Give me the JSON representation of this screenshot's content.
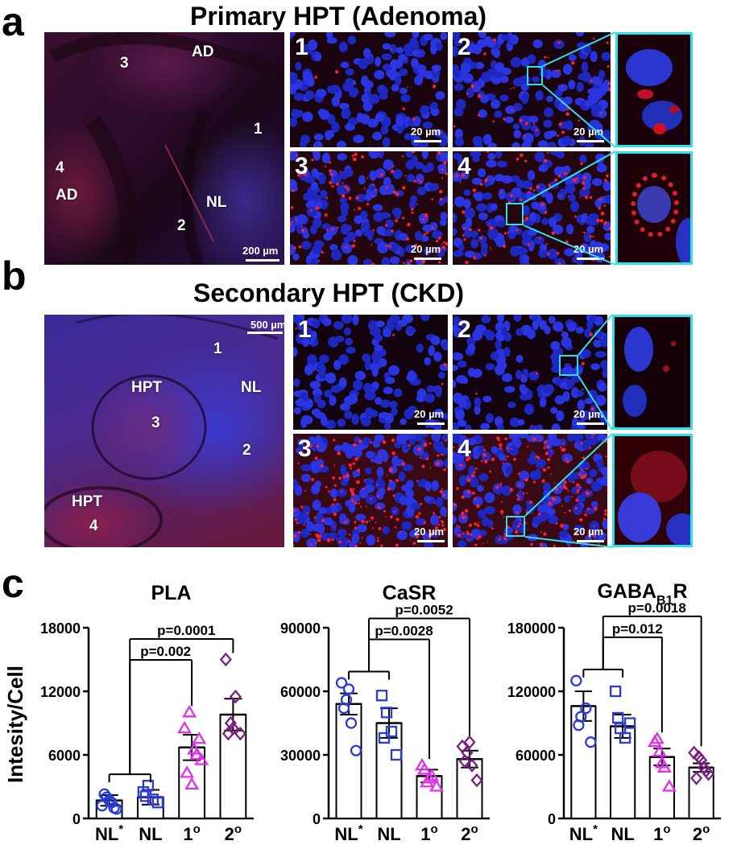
{
  "panel_a": {
    "letter": "a",
    "title": "Primary HPT (Adenoma)",
    "overview": {
      "regions": [
        "3",
        "AD",
        "1",
        "4",
        "AD",
        "NL",
        "2"
      ],
      "scale_bar": "200 µm"
    },
    "tiles": [
      {
        "number": "1",
        "scale_bar": "20 µm"
      },
      {
        "number": "2",
        "scale_bar": "20 µm"
      },
      {
        "number": "3",
        "scale_bar": "20 µm"
      },
      {
        "number": "4",
        "scale_bar": "20 µm"
      }
    ]
  },
  "panel_b": {
    "letter": "b",
    "title": "Secondary HPT (CKD)",
    "overview": {
      "regions": [
        "1",
        "HPT",
        "NL",
        "3",
        "2",
        "HPT",
        "4"
      ],
      "scale_bar": "500 µm"
    },
    "tiles": [
      {
        "number": "1",
        "scale_bar": "20 µm"
      },
      {
        "number": "2",
        "scale_bar": "20 µm"
      },
      {
        "number": "3",
        "scale_bar": "20 µm"
      },
      {
        "number": "4",
        "scale_bar": "20 µm"
      }
    ]
  },
  "panel_c": {
    "letter": "c",
    "ylabel": "Intesity/Cell",
    "colors": {
      "NL*": "#2b3bd6",
      "NL": "#2b3bd6",
      "1o": "#e030e8",
      "2o": "#7a1e80"
    }
  },
  "chart_data": [
    {
      "type": "bar",
      "title": "PLA",
      "categories": [
        "NL*",
        "NL",
        "1o",
        "2o"
      ],
      "category_labels": [
        {
          "base": "NL",
          "sup": "*"
        },
        {
          "base": "NL",
          "sup": ""
        },
        {
          "base": "1",
          "sup": "o"
        },
        {
          "base": "2",
          "sup": "o"
        }
      ],
      "values": [
        1700,
        2000,
        6700,
        9800
      ],
      "sem": [
        500,
        700,
        1200,
        1500
      ],
      "points": [
        [
          1200,
          2000,
          1500,
          900,
          2300,
          1700,
          1000
        ],
        [
          2500,
          3100,
          1800,
          1500,
          2100
        ],
        [
          8500,
          10000,
          6500,
          7500,
          4300,
          3200,
          6000,
          5500
        ],
        [
          15000,
          9000,
          11500,
          8000,
          8000,
          8500
        ]
      ],
      "ylim": [
        0,
        18000
      ],
      "yticks": [
        0,
        6000,
        12000,
        18000
      ],
      "comparisons": [
        {
          "label": "p=0.002",
          "to": "1o"
        },
        {
          "label": "p=0.0001",
          "to": "2o"
        }
      ]
    },
    {
      "type": "bar",
      "title": "CaSR",
      "categories": [
        "NL*",
        "NL",
        "1o",
        "2o"
      ],
      "category_labels": [
        {
          "base": "NL",
          "sup": "*"
        },
        {
          "base": "NL",
          "sup": ""
        },
        {
          "base": "1",
          "sup": "o"
        },
        {
          "base": "2",
          "sup": "o"
        }
      ],
      "values": [
        54000,
        45000,
        20000,
        28000
      ],
      "sem": [
        5000,
        7000,
        3000,
        4000
      ],
      "points": [
        [
          64000,
          56000,
          45000,
          32000,
          52000,
          61000
        ],
        [
          58000,
          50000,
          41000,
          30000,
          38000
        ],
        [
          25000,
          17000,
          20000,
          15000,
          23000,
          19000
        ],
        [
          34000,
          31000,
          25000,
          18000,
          27000,
          36000
        ]
      ],
      "ylim": [
        0,
        90000
      ],
      "yticks": [
        0,
        30000,
        60000,
        90000
      ],
      "comparisons": [
        {
          "label": "p=0.0028",
          "to": "1o"
        },
        {
          "label": "p=0.0052",
          "to": "2o"
        }
      ]
    },
    {
      "type": "bar",
      "title": "GABAB1R",
      "title_parts": {
        "base": "GABA",
        "sub": "B1",
        "tail": "R"
      },
      "categories": [
        "NL*",
        "NL",
        "1o",
        "2o"
      ],
      "category_labels": [
        {
          "base": "NL",
          "sup": "*"
        },
        {
          "base": "NL",
          "sup": ""
        },
        {
          "base": "1",
          "sup": "o"
        },
        {
          "base": "2",
          "sup": "o"
        }
      ],
      "values": [
        106000,
        87000,
        58000,
        48000
      ],
      "sem": [
        14000,
        11000,
        8000,
        4000
      ],
      "points": [
        [
          130000,
          96000,
          104000,
          72000,
          88000
        ],
        [
          120000,
          85000,
          76000,
          90000,
          95000
        ],
        [
          72000,
          63000,
          48000,
          30000,
          75000,
          52000
        ],
        [
          62000,
          58000,
          48000,
          42000,
          38000,
          55000,
          45000
        ]
      ],
      "ylim": [
        0,
        180000
      ],
      "yticks": [
        0,
        60000,
        120000,
        180000
      ],
      "comparisons": [
        {
          "label": "p=0.012",
          "to": "1o"
        },
        {
          "label": "p=0.0018",
          "to": "2o"
        }
      ]
    }
  ]
}
